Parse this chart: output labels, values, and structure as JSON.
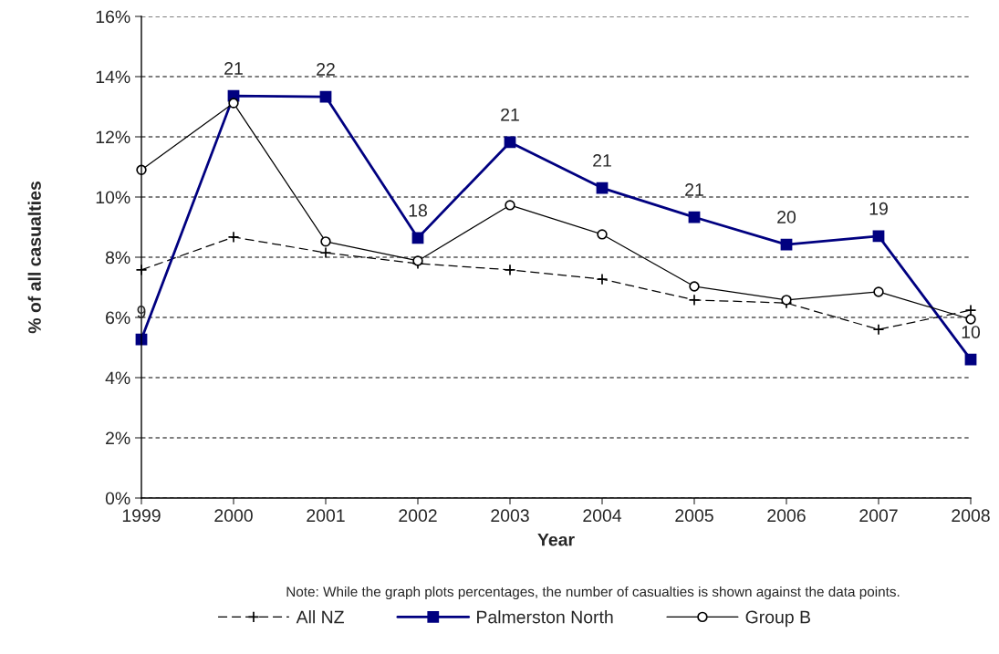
{
  "chart_data": {
    "type": "line",
    "xlabel": "Year",
    "ylabel": "% of all casualties",
    "x": [
      1999,
      2000,
      2001,
      2002,
      2003,
      2004,
      2005,
      2006,
      2007,
      2008
    ],
    "xlim": [
      1999,
      2008
    ],
    "xticks": [
      1999,
      2000,
      2001,
      2002,
      2003,
      2004,
      2005,
      2006,
      2007,
      2008
    ],
    "ylim": [
      0,
      16
    ],
    "yticks": [
      {
        "value": 0,
        "label": "0%"
      },
      {
        "value": 2,
        "label": "2%"
      },
      {
        "value": 4,
        "label": "4%"
      },
      {
        "value": 6,
        "label": "6%"
      },
      {
        "value": 8,
        "label": "8%"
      },
      {
        "value": 10,
        "label": "10%"
      },
      {
        "value": 12,
        "label": "12%"
      },
      {
        "value": 14,
        "label": "14%"
      },
      {
        "value": 16,
        "label": "16%"
      }
    ],
    "grid": "y",
    "legend": "bottom",
    "series": [
      {
        "name": "All NZ",
        "color": "#000000",
        "marker": "cross",
        "line_style": "dashed",
        "values": [
          7.58,
          8.67,
          8.15,
          7.79,
          7.58,
          7.27,
          6.58,
          6.48,
          5.6,
          6.24
        ]
      },
      {
        "name": "Palmerston North",
        "color": "#000080",
        "marker": "square",
        "line_style": "solid",
        "values": [
          5.27,
          13.36,
          13.33,
          8.64,
          11.82,
          10.3,
          9.33,
          8.42,
          8.7,
          4.6
        ]
      },
      {
        "name": "Group B",
        "color": "#000000",
        "marker": "circle",
        "line_style": "solid",
        "values": [
          10.9,
          13.12,
          8.52,
          7.88,
          9.73,
          8.76,
          7.03,
          6.58,
          6.85,
          5.94
        ]
      }
    ],
    "annotations": [
      {
        "text": "9",
        "x": 1999,
        "y": 5.27
      },
      {
        "text": "21",
        "x": 2000,
        "y": 13.36
      },
      {
        "text": "22",
        "x": 2001,
        "y": 13.33
      },
      {
        "text": "18",
        "x": 2002,
        "y": 8.64
      },
      {
        "text": "21",
        "x": 2003,
        "y": 11.82
      },
      {
        "text": "21",
        "x": 2004,
        "y": 10.3
      },
      {
        "text": "21",
        "x": 2005,
        "y": 9.33
      },
      {
        "text": "20",
        "x": 2006,
        "y": 8.42
      },
      {
        "text": "19",
        "x": 2007,
        "y": 8.7
      },
      {
        "text": "10",
        "x": 2008,
        "y": 4.6
      },
      "Note: While the graph plots percentages, the number of casualties is shown against the data points."
    ]
  }
}
